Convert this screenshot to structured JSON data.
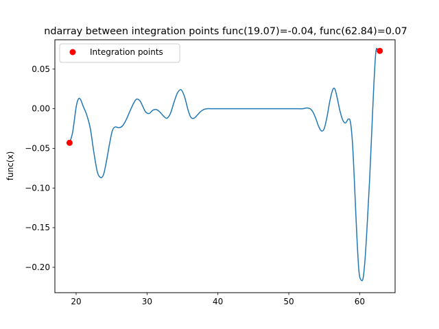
{
  "chart_data": {
    "type": "line",
    "title": "ndarray between integration points func(19.07)=-0.04, func(62.84)=0.07",
    "xlabel": "",
    "ylabel": "func(x)",
    "xlim": [
      17,
      65
    ],
    "ylim": [
      -0.232,
      0.087
    ],
    "xticks": [
      20,
      30,
      40,
      50,
      60
    ],
    "yticks": [
      -0.2,
      -0.15,
      -0.1,
      -0.05,
      0.0,
      0.05
    ],
    "xtick_labels": [
      "20",
      "30",
      "40",
      "50",
      "60"
    ],
    "ytick_labels": [
      "−0.20",
      "−0.15",
      "−0.10",
      "−0.05",
      "0.00",
      "0.05"
    ],
    "grid": false,
    "legend": {
      "position": "upper-left",
      "entries": [
        "Integration points"
      ]
    },
    "colors": {
      "line": "#1f77b4",
      "points": "#ff0000"
    },
    "series": [
      {
        "kind": "line",
        "x": [
          19.07,
          19.5,
          20.0,
          20.3,
          20.6,
          21.0,
          21.5,
          22.0,
          22.5,
          23.0,
          23.5,
          23.9,
          24.3,
          24.7,
          25.1,
          25.5,
          26.0,
          26.5,
          27.0,
          27.5,
          28.0,
          28.5,
          29.0,
          29.4,
          29.8,
          30.3,
          30.8,
          31.3,
          31.8,
          32.3,
          32.8,
          33.3,
          33.8,
          34.3,
          34.8,
          35.3,
          35.8,
          36.2,
          36.6,
          37.0,
          37.5,
          38.0,
          38.5,
          39.0,
          39.5,
          40.0,
          40.5,
          41.0,
          42.0,
          44.0,
          46.0,
          48.0,
          50.0,
          51.0,
          52.0,
          52.5,
          53.0,
          53.4,
          53.8,
          54.2,
          54.6,
          55.0,
          55.4,
          55.8,
          56.2,
          56.5,
          56.8,
          57.2,
          57.6,
          58.0,
          58.4,
          58.7,
          59.0,
          59.3,
          59.6,
          59.9,
          60.2,
          60.5,
          60.8,
          61.1,
          61.4,
          61.7,
          62.0,
          62.3,
          62.6,
          62.84
        ],
        "y": [
          -0.043,
          -0.03,
          0.002,
          0.012,
          0.012,
          0.003,
          -0.008,
          -0.025,
          -0.055,
          -0.08,
          -0.087,
          -0.082,
          -0.065,
          -0.045,
          -0.028,
          -0.023,
          -0.024,
          -0.022,
          -0.015,
          -0.005,
          0.005,
          0.012,
          0.01,
          0.003,
          -0.004,
          -0.006,
          -0.002,
          -0.001,
          -0.004,
          -0.009,
          -0.012,
          -0.006,
          0.008,
          0.02,
          0.024,
          0.015,
          -0.002,
          -0.011,
          -0.012,
          -0.009,
          -0.004,
          -0.001,
          0.0,
          0.0,
          0.0,
          0.0,
          0.0,
          0.0,
          0.0,
          0.0,
          0.0,
          0.0,
          0.0,
          0.0,
          0.0,
          0.001,
          0.0,
          -0.004,
          -0.012,
          -0.022,
          -0.028,
          -0.025,
          -0.01,
          0.01,
          0.024,
          0.025,
          0.015,
          -0.002,
          -0.014,
          -0.018,
          -0.013,
          -0.017,
          -0.045,
          -0.1,
          -0.16,
          -0.205,
          -0.216,
          -0.213,
          -0.185,
          -0.14,
          -0.09,
          -0.03,
          0.03,
          0.073,
          0.073,
          0.073
        ]
      },
      {
        "kind": "scatter",
        "name": "Integration points",
        "x": [
          19.07,
          62.84
        ],
        "y": [
          -0.043,
          0.073
        ]
      }
    ]
  }
}
